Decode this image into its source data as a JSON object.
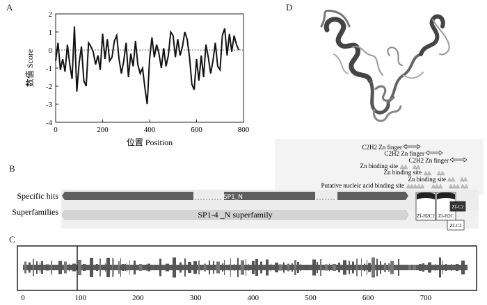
{
  "panels": {
    "a": "A",
    "b": "B",
    "c": "C",
    "d": "D"
  },
  "panel_a": {
    "xlabel": "位置 Position",
    "ylabel": "数值 Score",
    "x_ticks": [
      "0",
      "200",
      "400",
      "600",
      "800"
    ],
    "y_ticks": [
      "2",
      "1",
      "0",
      "-1",
      "-2",
      "-3",
      "-4"
    ]
  },
  "chart_data": {
    "type": "line",
    "xlabel": "位置 Position",
    "ylabel": "数值 Score",
    "xlim": [
      0,
      800
    ],
    "ylim": [
      -4,
      2
    ],
    "reference_line_y": 0,
    "x": [
      0,
      10,
      20,
      30,
      40,
      50,
      60,
      70,
      80,
      90,
      100,
      110,
      120,
      130,
      140,
      150,
      160,
      170,
      180,
      190,
      200,
      210,
      220,
      230,
      240,
      250,
      260,
      270,
      280,
      290,
      300,
      310,
      320,
      330,
      340,
      350,
      360,
      370,
      380,
      390,
      400,
      410,
      420,
      430,
      440,
      450,
      460,
      470,
      480,
      490,
      500,
      510,
      520,
      530,
      540,
      550,
      560,
      570,
      580,
      590,
      600,
      610,
      620,
      630,
      640,
      650,
      660,
      670,
      680,
      690,
      700,
      710,
      720,
      730,
      740,
      750,
      760,
      770,
      780
    ],
    "y": [
      -0.6,
      0.4,
      -1.1,
      -0.5,
      -1.2,
      0.3,
      -0.8,
      -1.6,
      1.3,
      -2.3,
      -0.7,
      0.2,
      -1.7,
      -2.0,
      0.4,
      0.2,
      -0.1,
      -0.8,
      -0.3,
      -1.1,
      0.9,
      -0.5,
      0.6,
      -0.6,
      -0.4,
      0.5,
      0.8,
      -0.5,
      -1.3,
      -0.6,
      0.4,
      -1.5,
      -0.2,
      -0.9,
      0.5,
      -0.8,
      -1.3,
      -1.0,
      -2.1,
      -3.0,
      -0.5,
      0.7,
      -0.4,
      0.3,
      -0.2,
      -1.0,
      0.1,
      -0.9,
      -0.3,
      1.0,
      0.8,
      -0.4,
      0.6,
      -0.3,
      0.2,
      1.0,
      0.6,
      -0.4,
      -1.9,
      -2.2,
      -0.5,
      -1.7,
      -0.3,
      -1.5,
      0.3,
      -0.4,
      -1.3,
      -0.6,
      0.4,
      -0.9,
      -1.1,
      0.8,
      1.2,
      -0.3,
      0.9,
      -0.1,
      0.8,
      0.3,
      0.0
    ]
  },
  "panel_b": {
    "row_labels": {
      "specific": "Specific hits",
      "super": "Superfamilies"
    },
    "bar_labels": {
      "sp1_n": "SP1_N",
      "superfamily": "SP1-4 _N superfamily"
    },
    "annotations": [
      "C2H2 Zn finger",
      "C2H2 Zn finger",
      "C2H2 Zn finger",
      "Zn binding site",
      "Zn binding site",
      "Zn binding site",
      "Putative nucleic acid binding site"
    ],
    "domain_boxes": [
      "Zf-H2C2",
      "Zf-H2C",
      "Zf-C2",
      "Zf-C2"
    ]
  },
  "panel_c": {
    "x_ticks": [
      "0",
      "100",
      "200",
      "300",
      "400",
      "500",
      "600",
      "700"
    ]
  },
  "colors": {
    "bar_dark": "#606060",
    "bar_light": "#d9d9d9",
    "line": "#111111"
  }
}
